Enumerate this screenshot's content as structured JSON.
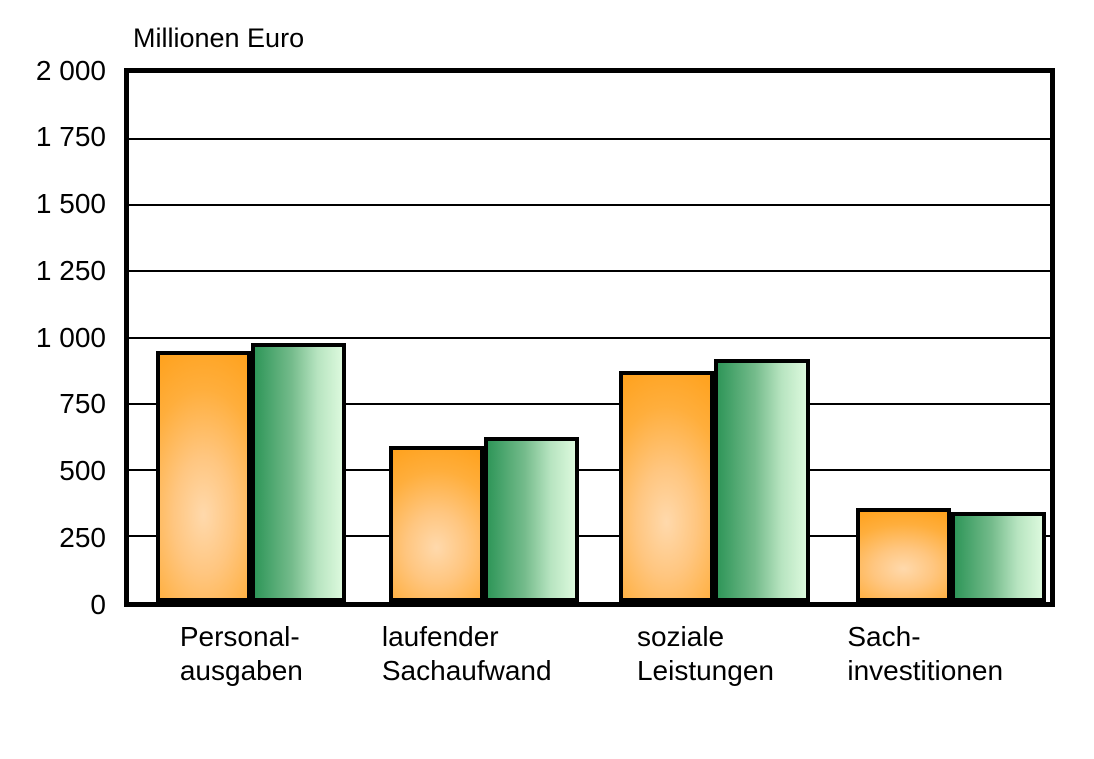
{
  "chart_data": {
    "type": "bar",
    "title": "Millionen Euro",
    "ylabel": "Millionen Euro",
    "categories": [
      "Personal-\nausgaben",
      "laufender\nSachaufwand",
      "soziale\nLeistungen",
      "Sach-\ninvestitionen"
    ],
    "category_lines": [
      [
        "Personal-",
        "ausgaben"
      ],
      [
        "laufender",
        "Sachaufwand"
      ],
      [
        "soziale",
        "Leistungen"
      ],
      [
        "Sach-",
        "investitionen"
      ]
    ],
    "series": [
      {
        "name": "orange-series",
        "color": "#FFA21E",
        "highlight_color": "#FFD9AC",
        "values": [
          950,
          590,
          875,
          355
        ]
      },
      {
        "name": "green-series",
        "color": "#2F9659",
        "light_color": "#DCF9DD",
        "values": [
          980,
          625,
          920,
          340
        ]
      }
    ],
    "ylim": [
      0,
      2000
    ],
    "ytick_interval": 250,
    "ytick_labels": [
      "2 000",
      "1 750",
      "1 500",
      "1 250",
      "1 000",
      "750",
      "500",
      "250",
      "0"
    ],
    "grid": true,
    "legend": false,
    "axis_color": "#000000",
    "gridline_color": "#000000",
    "background": "#FFFFFF"
  }
}
